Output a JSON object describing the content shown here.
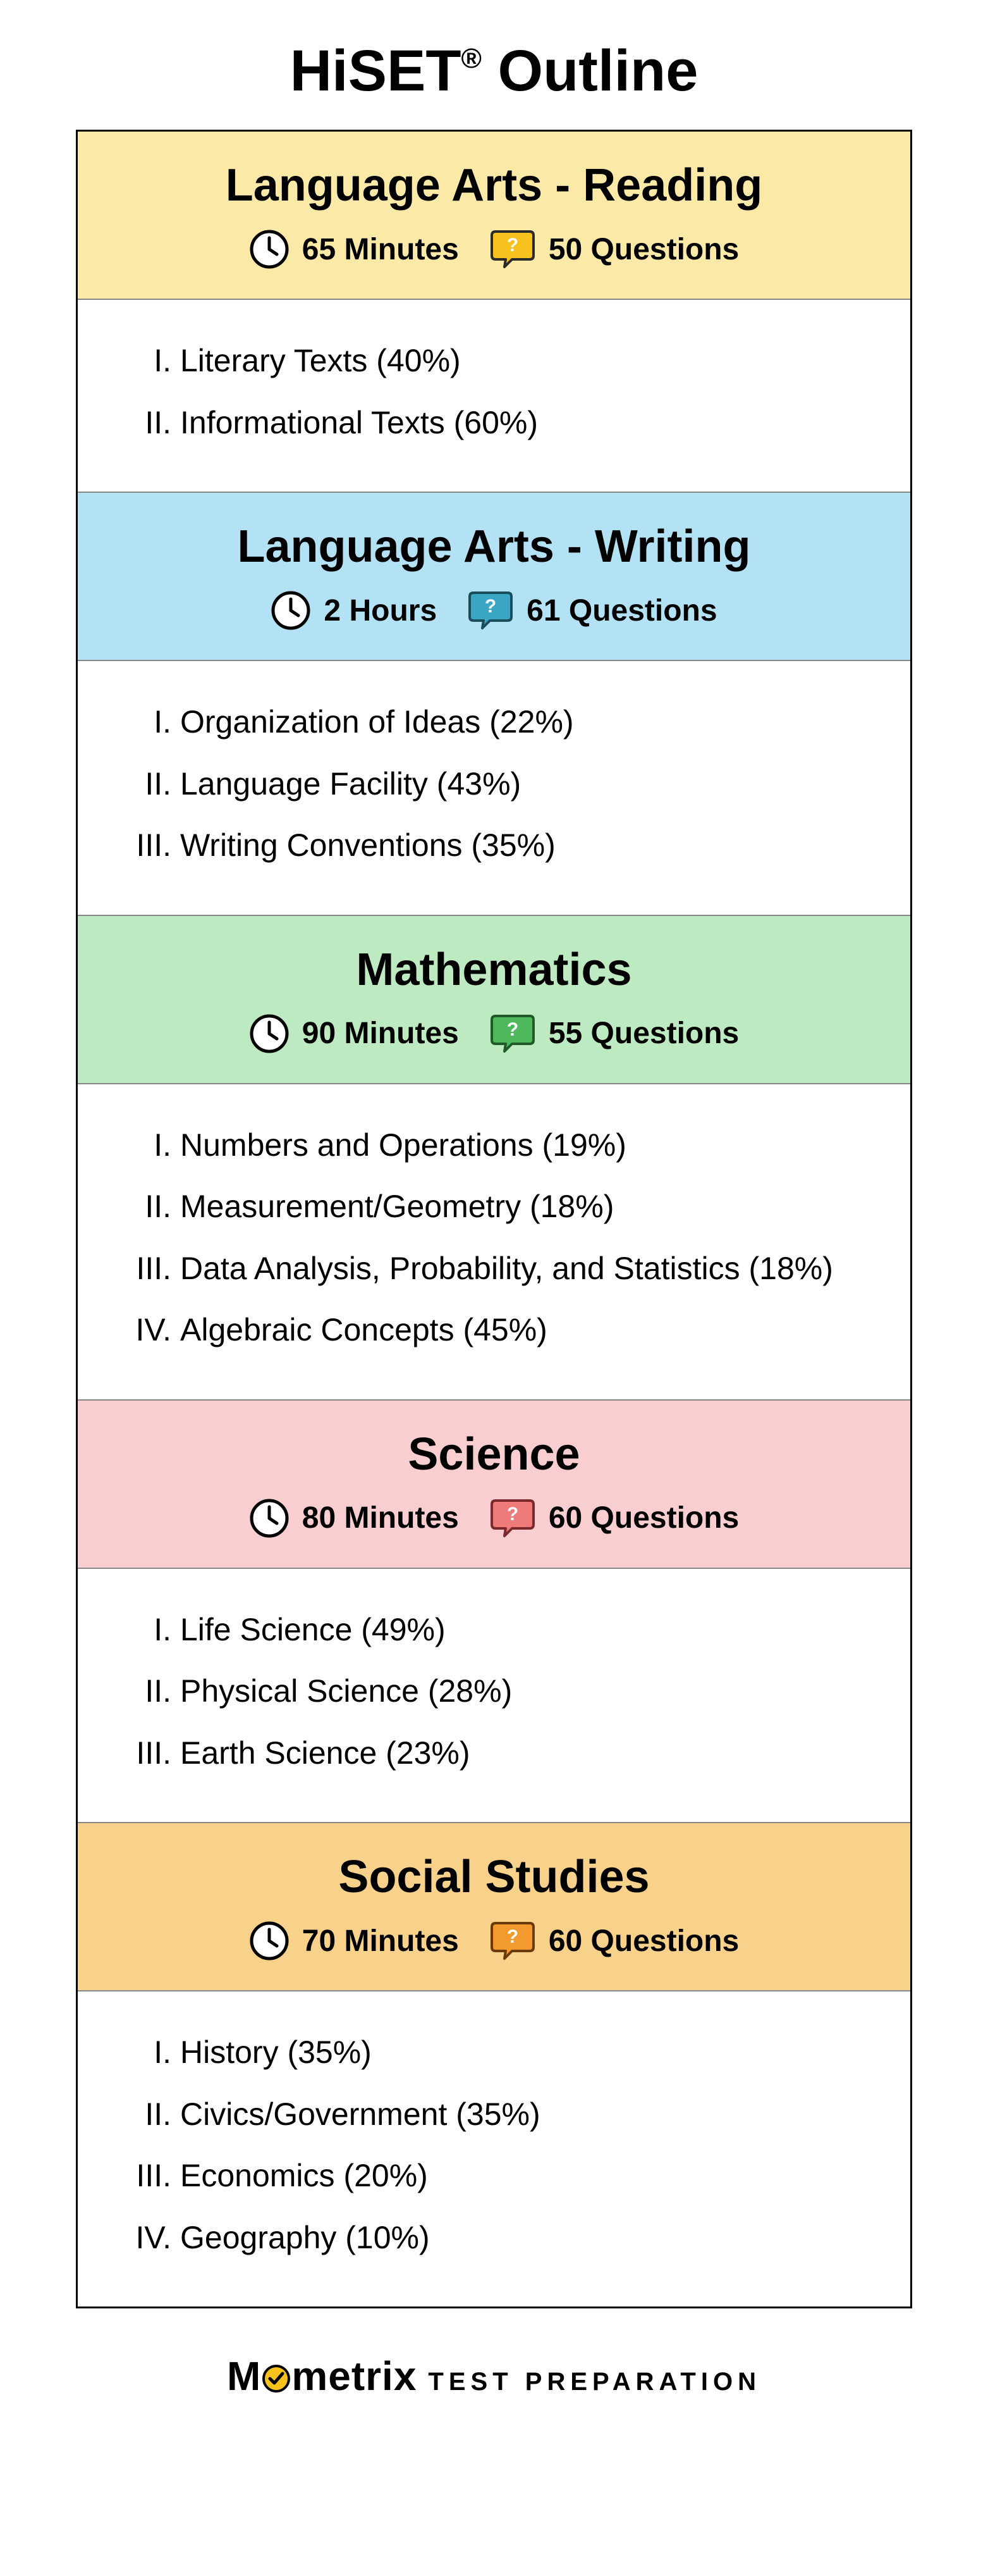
{
  "title_main": "HiSET",
  "title_reg": "®",
  "title_rest": " Outline",
  "footer_brand_pre": "M",
  "footer_brand_post": "metrix",
  "footer_sub": "TEST PREPARATION",
  "colors": {
    "border": "#000000",
    "text": "#000000",
    "divider": "#888888",
    "clock_fill": "#ffffff",
    "clock_stroke": "#000000"
  },
  "sections": [
    {
      "name": "Language Arts - Reading",
      "time": "65 Minutes",
      "questions": "50 Questions",
      "header_bg": "#fbe9a8",
      "bubble_fill": "#f7c21e",
      "bubble_stroke": "#2a2a2a",
      "topics": [
        {
          "roman": "I.",
          "label": "Literary Texts (40%)"
        },
        {
          "roman": "II.",
          "label": "Informational Texts (60%)"
        }
      ]
    },
    {
      "name": "Language Arts - Writing",
      "time": "2 Hours",
      "questions": "61 Questions",
      "header_bg": "#b4e2f5",
      "bubble_fill": "#3aa6c3",
      "bubble_stroke": "#1a4d5a",
      "topics": [
        {
          "roman": "I.",
          "label": "Organization of Ideas (22%)"
        },
        {
          "roman": "II.",
          "label": "Language Facility (43%)"
        },
        {
          "roman": "III.",
          "label": "Writing Conventions (35%)"
        }
      ]
    },
    {
      "name": "Mathematics",
      "time": "90 Minutes",
      "questions": "55 Questions",
      "header_bg": "#bdeac0",
      "bubble_fill": "#4fb85c",
      "bubble_stroke": "#1f5a28",
      "topics": [
        {
          "roman": "I.",
          "label": "Numbers and Operations (19%)"
        },
        {
          "roman": "II.",
          "label": "Measurement/Geometry (18%)"
        },
        {
          "roman": "III.",
          "label": "Data Analysis, Probability, and Statistics (18%)"
        },
        {
          "roman": "IV.",
          "label": "Algebraic Concepts (45%)"
        }
      ]
    },
    {
      "name": "Science",
      "time": "80 Minutes",
      "questions": "60 Questions",
      "header_bg": "#f9ced0",
      "bubble_fill": "#ef7a7a",
      "bubble_stroke": "#7a2a2a",
      "topics": [
        {
          "roman": "I.",
          "label": "Life Science (49%)"
        },
        {
          "roman": "II.",
          "label": "Physical Science (28%)"
        },
        {
          "roman": "III.",
          "label": "Earth Science (23%)"
        }
      ]
    },
    {
      "name": "Social Studies",
      "time": "70 Minutes",
      "questions": "60 Questions",
      "header_bg": "#f8d18b",
      "bubble_fill": "#f29a2e",
      "bubble_stroke": "#6a3a0a",
      "topics": [
        {
          "roman": "I.",
          "label": "History (35%)"
        },
        {
          "roman": "II.",
          "label": "Civics/Government (35%)"
        },
        {
          "roman": "III.",
          "label": "Economics (20%)"
        },
        {
          "roman": "IV.",
          "label": "Geography (10%)"
        }
      ]
    }
  ]
}
